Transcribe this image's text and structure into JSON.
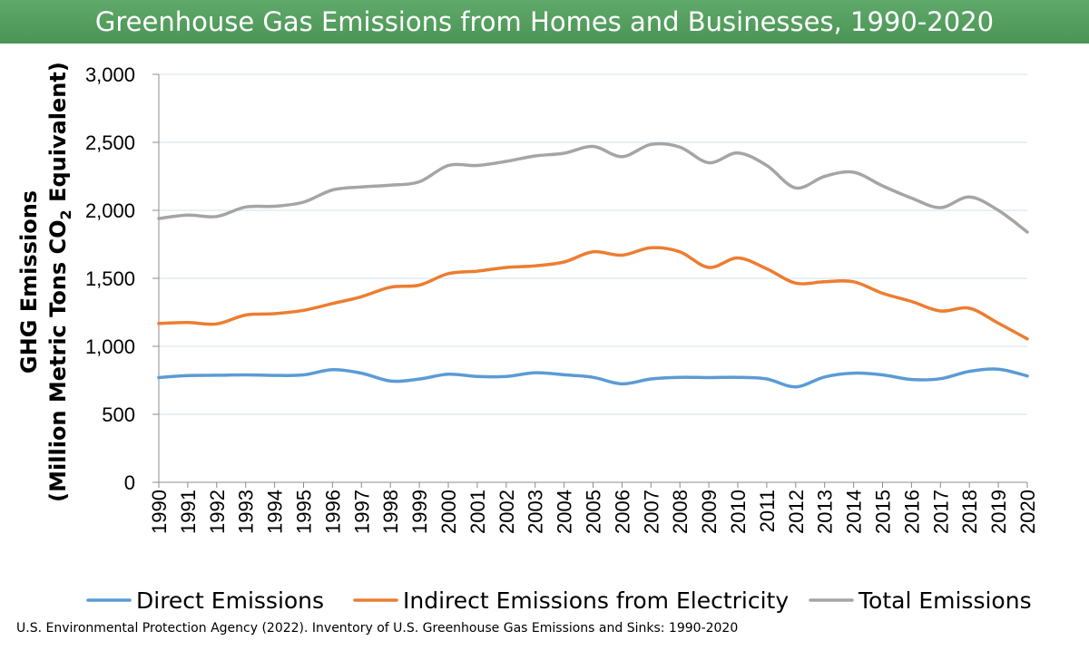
{
  "chart_data": {
    "type": "line",
    "title": "Greenhouse Gas Emissions from Homes and Businesses, 1990-2020",
    "ylabel_line1": "GHG Emissions",
    "ylabel_line2_prefix": "(Million Metric Tons CO",
    "ylabel_line2_sub": "2",
    "ylabel_line2_suffix": " Equivalent)",
    "ylim": [
      0,
      3000
    ],
    "yticks": [
      0,
      500,
      1000,
      1500,
      2000,
      2500,
      3000
    ],
    "ytick_labels": [
      "0",
      "500",
      "1,000",
      "1,500",
      "2,000",
      "2,500",
      "3,000"
    ],
    "grid": true,
    "legend_position": "bottom",
    "x": [
      "1990",
      "1991",
      "1992",
      "1993",
      "1994",
      "1995",
      "1996",
      "1997",
      "1998",
      "1999",
      "2000",
      "2001",
      "2002",
      "2003",
      "2004",
      "2005",
      "2006",
      "2007",
      "2008",
      "2009",
      "2010",
      "2011",
      "2012",
      "2013",
      "2014",
      "2015",
      "2016",
      "2017",
      "2018",
      "2019",
      "2020"
    ],
    "series": [
      {
        "name": "Direct Emissions",
        "color": "#5b9bd5",
        "values": [
          770,
          785,
          787,
          790,
          786,
          790,
          828,
          803,
          745,
          759,
          795,
          778,
          778,
          806,
          791,
          772,
          724,
          760,
          772,
          770,
          772,
          760,
          702,
          775,
          803,
          790,
          756,
          762,
          816,
          832,
          782
        ]
      },
      {
        "name": "Indirect Emissions from Electricity",
        "color": "#ed7d31",
        "values": [
          1168,
          1175,
          1165,
          1230,
          1240,
          1265,
          1315,
          1365,
          1435,
          1450,
          1535,
          1553,
          1580,
          1592,
          1620,
          1695,
          1670,
          1725,
          1695,
          1580,
          1650,
          1570,
          1465,
          1475,
          1475,
          1390,
          1330,
          1260,
          1280,
          1170,
          1055
        ]
      },
      {
        "name": "Total Emissions",
        "color": "#a5a5a5",
        "values": [
          1940,
          1965,
          1955,
          2025,
          2030,
          2060,
          2150,
          2172,
          2185,
          2210,
          2330,
          2330,
          2360,
          2400,
          2420,
          2470,
          2395,
          2485,
          2465,
          2350,
          2422,
          2330,
          2165,
          2250,
          2280,
          2180,
          2090,
          2020,
          2098,
          2000,
          1840
        ]
      }
    ]
  },
  "source": "U.S. Environmental Protection Agency (2022). Inventory of U.S. Greenhouse Gas Emissions and Sinks: 1990-2020"
}
